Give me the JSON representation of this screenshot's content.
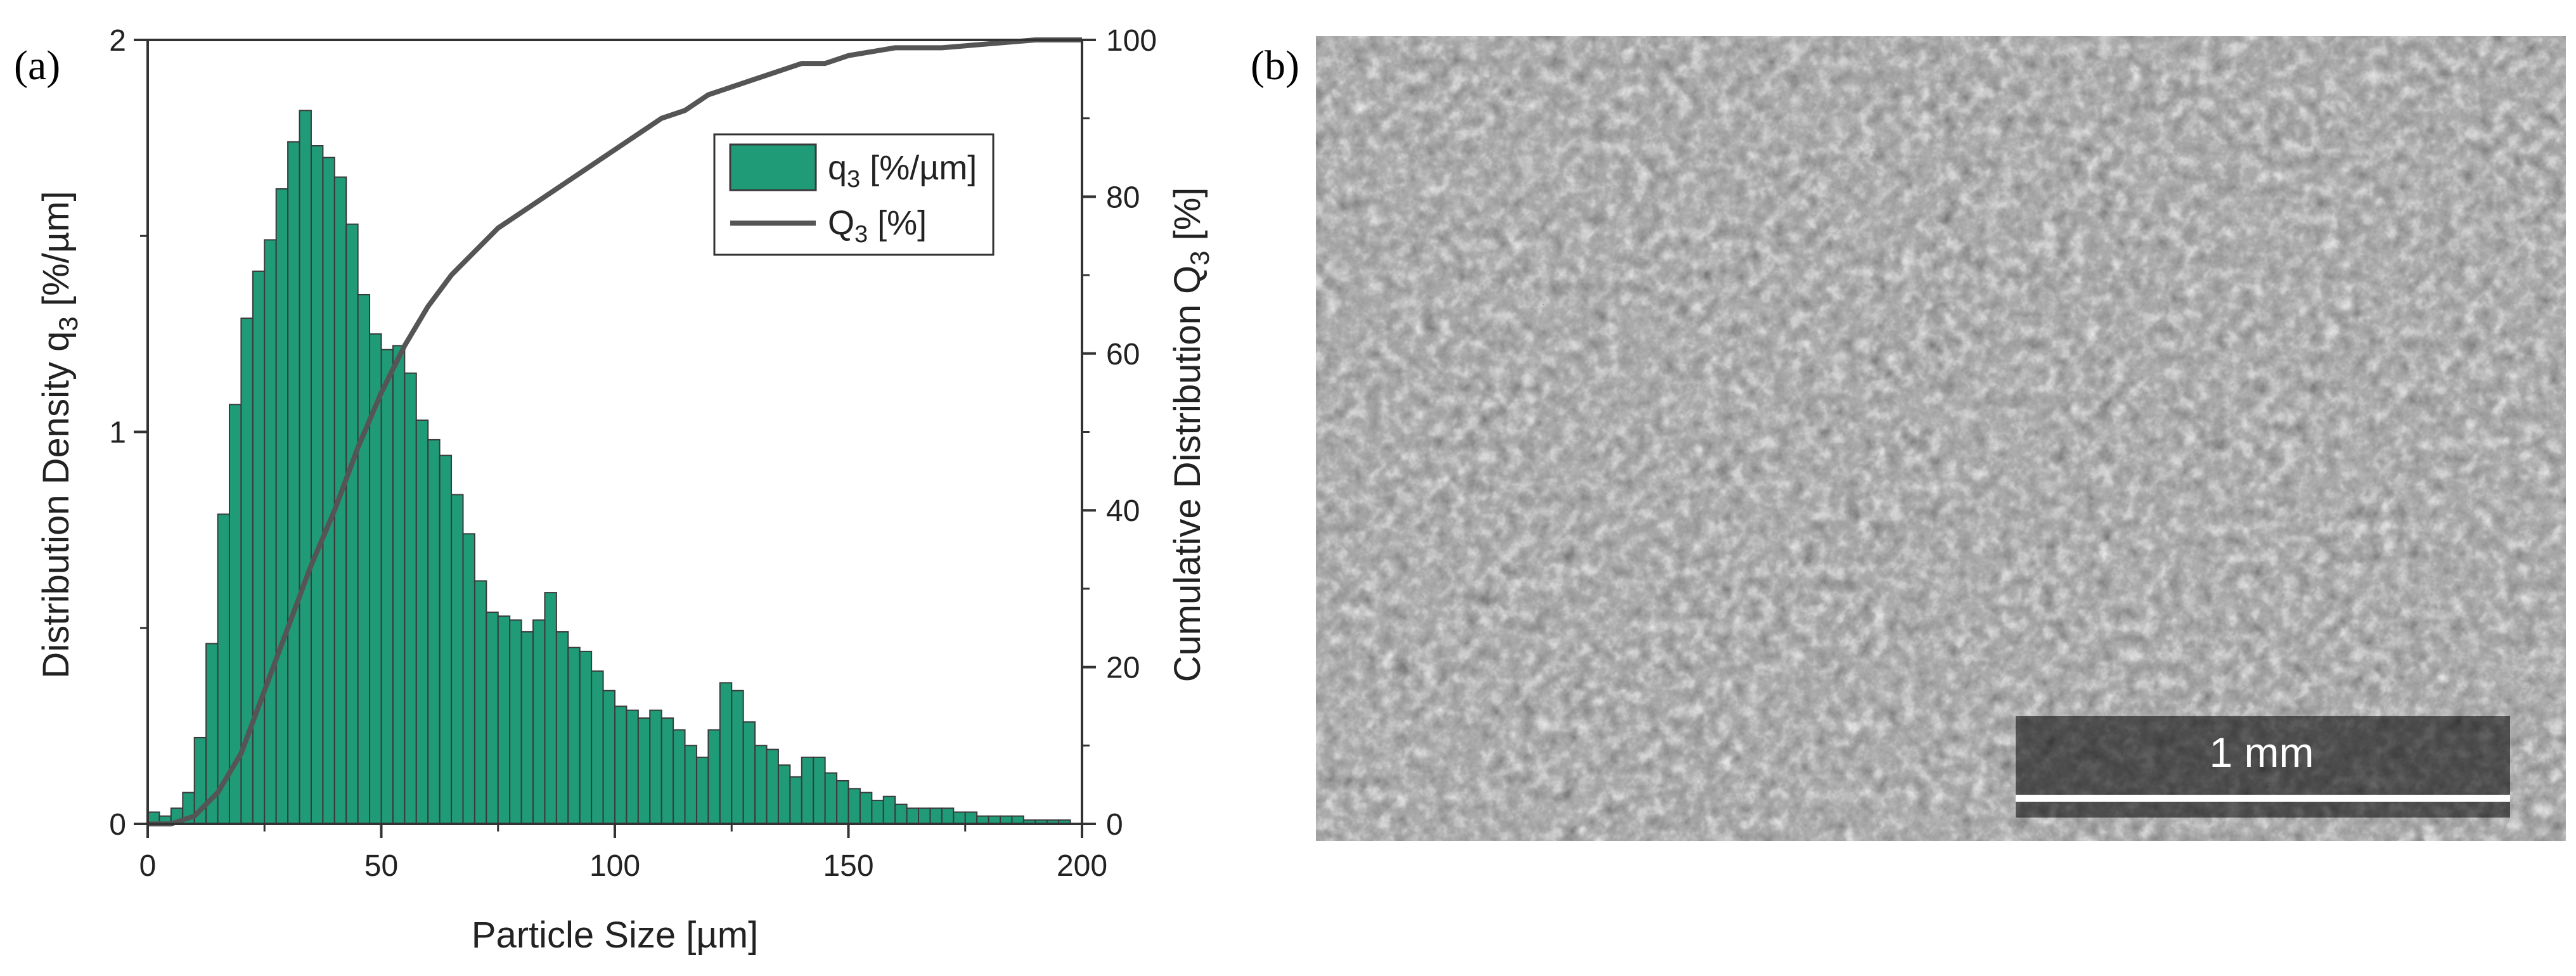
{
  "panel_a": {
    "label": "(a)"
  },
  "panel_b": {
    "label": "(b)",
    "scale_bar_label": "1 mm",
    "image_description_icon": "sem-micrograph"
  },
  "colors": {
    "bar_fill": "#1f9b78",
    "bar_edge": "#3a3a3a",
    "line": "#555555",
    "sem_bg": "#555555"
  },
  "legend": {
    "bar_entry": {
      "prefix": "q",
      "sub": "3",
      "suffix": " [%/µm]"
    },
    "line_entry": {
      "prefix": "Q",
      "sub": "3",
      "suffix": " [%]"
    }
  },
  "axes": {
    "xlabel": "Particle Size [µm]",
    "ylabel_left": {
      "prefix": "Distribution Density q",
      "sub": "3",
      "suffix": " [%/µm]"
    },
    "ylabel_right": {
      "prefix": "Cumulative Distribution Q",
      "sub": "3",
      "suffix": " [%]"
    }
  },
  "chart_data": {
    "type": "bar",
    "x_bin_width": 2.5,
    "x_bin_starts": [
      0,
      2.5,
      5,
      7.5,
      10,
      12.5,
      15,
      17.5,
      20,
      22.5,
      25,
      27.5,
      30,
      32.5,
      35,
      37.5,
      40,
      42.5,
      45,
      47.5,
      50,
      52.5,
      55,
      57.5,
      60,
      62.5,
      65,
      67.5,
      70,
      72.5,
      75,
      77.5,
      80,
      82.5,
      85,
      87.5,
      90,
      92.5,
      95,
      97.5,
      100,
      102.5,
      105,
      107.5,
      110,
      112.5,
      115,
      117.5,
      120,
      122.5,
      125,
      127.5,
      130,
      132.5,
      135,
      137.5,
      140,
      142.5,
      145,
      147.5,
      150,
      152.5,
      155,
      157.5,
      160,
      162.5,
      165,
      167.5,
      170,
      172.5,
      175,
      177.5,
      180,
      182.5,
      185,
      187.5,
      190,
      192.5,
      195,
      197.5
    ],
    "q3_values": [
      0.03,
      0.02,
      0.04,
      0.08,
      0.22,
      0.46,
      0.79,
      1.07,
      1.29,
      1.41,
      1.49,
      1.62,
      1.74,
      1.82,
      1.73,
      1.7,
      1.65,
      1.53,
      1.35,
      1.25,
      1.21,
      1.22,
      1.15,
      1.03,
      0.98,
      0.94,
      0.84,
      0.74,
      0.62,
      0.54,
      0.53,
      0.52,
      0.49,
      0.52,
      0.59,
      0.49,
      0.45,
      0.44,
      0.39,
      0.34,
      0.3,
      0.29,
      0.27,
      0.29,
      0.27,
      0.24,
      0.2,
      0.17,
      0.24,
      0.36,
      0.34,
      0.26,
      0.2,
      0.19,
      0.15,
      0.12,
      0.17,
      0.17,
      0.13,
      0.11,
      0.09,
      0.08,
      0.06,
      0.07,
      0.05,
      0.04,
      0.04,
      0.04,
      0.04,
      0.03,
      0.03,
      0.02,
      0.02,
      0.02,
      0.02,
      0.01,
      0.01,
      0.01,
      0.01,
      0.0
    ],
    "cumulative_x": [
      0,
      5,
      10,
      15,
      20,
      25,
      30,
      35,
      40,
      45,
      50,
      55,
      60,
      65,
      70,
      75,
      80,
      85,
      90,
      95,
      100,
      105,
      110,
      115,
      120,
      125,
      130,
      135,
      140,
      145,
      150,
      160,
      170,
      180,
      190,
      200
    ],
    "cumulative_Q3": [
      0,
      0,
      1,
      4,
      9,
      17,
      25,
      33,
      40,
      48,
      55,
      61,
      66,
      70,
      73,
      76,
      78,
      80,
      82,
      84,
      86,
      88,
      90,
      91,
      93,
      94,
      95,
      96,
      97,
      97,
      98,
      99,
      99,
      99.5,
      100,
      100
    ],
    "xlim": [
      0,
      200
    ],
    "ylim_left": [
      0,
      2
    ],
    "ylim_right": [
      0,
      100
    ],
    "x_ticks": [
      "0",
      "50",
      "100",
      "150",
      "200"
    ],
    "y_left_ticks": [
      "0",
      "1",
      "2"
    ],
    "y_right_ticks": [
      "0",
      "20",
      "40",
      "60",
      "80",
      "100"
    ],
    "legend_position": "top-right"
  }
}
